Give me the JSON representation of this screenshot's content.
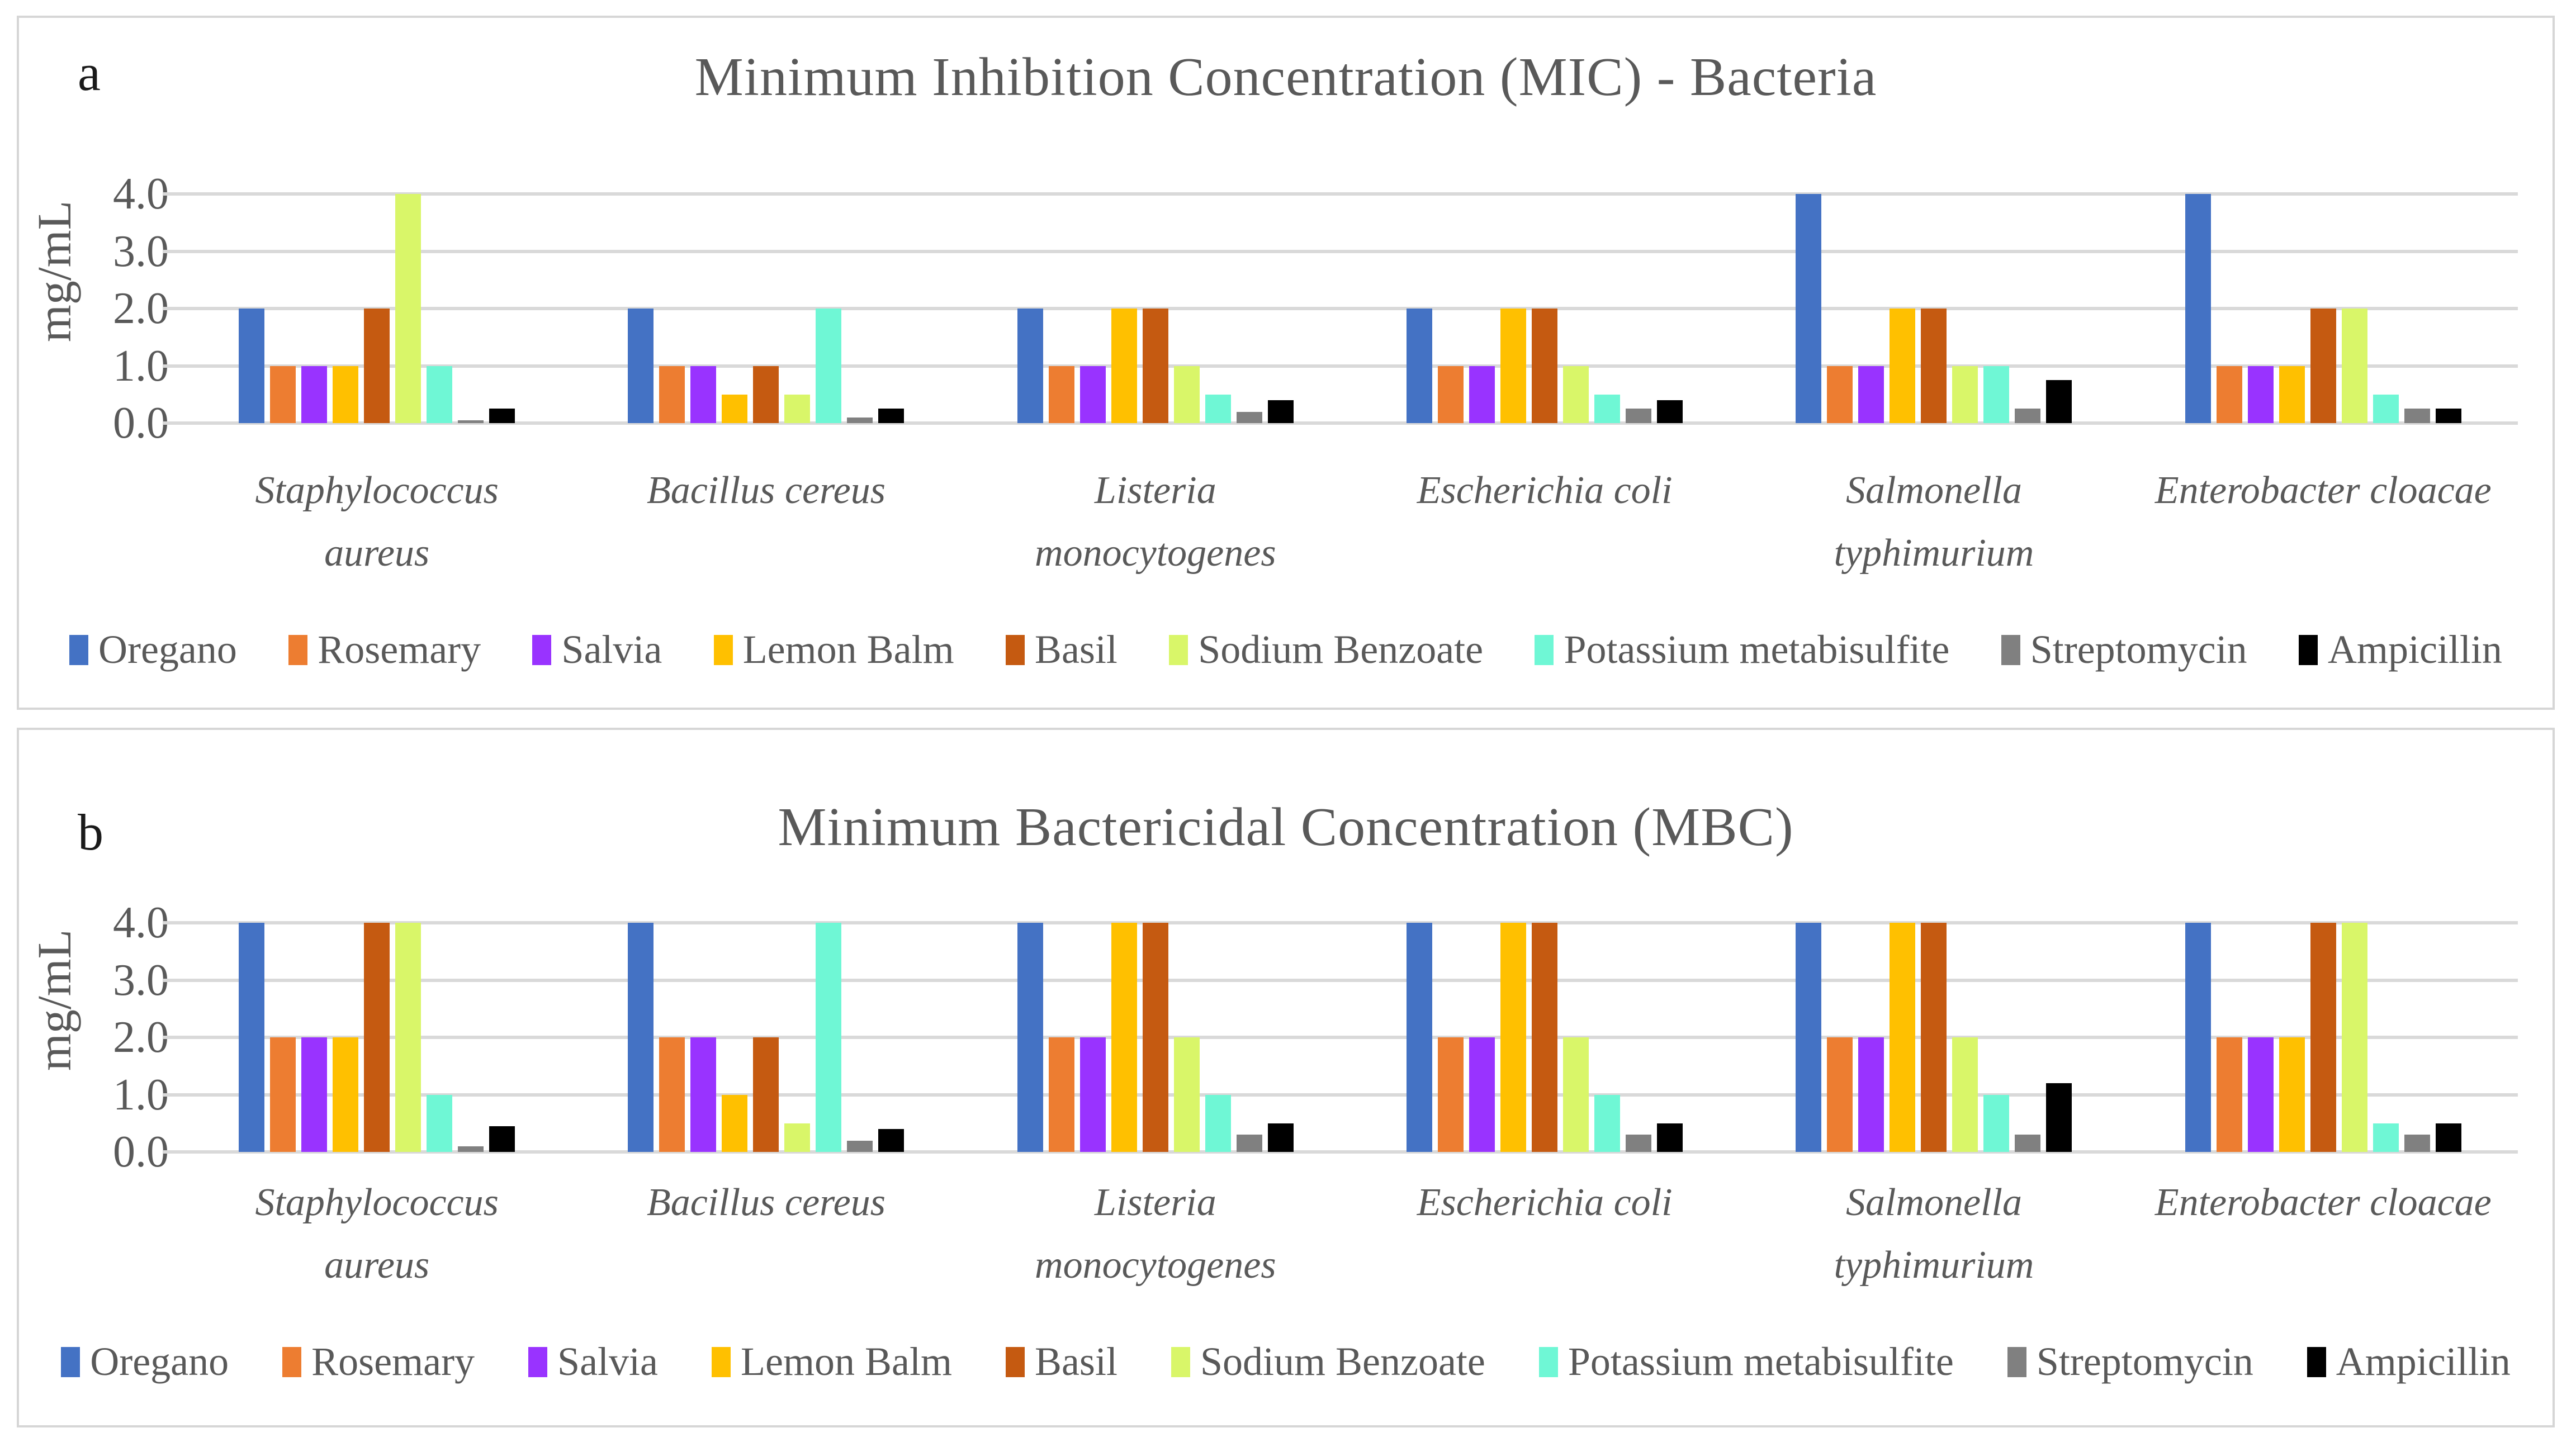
{
  "panels": [
    {
      "letter": "a"
    },
    {
      "letter": "b"
    }
  ],
  "series_colors": {
    "oregano": "#4472C4",
    "rosemary": "#ED7D31",
    "salvia": "#9933FF",
    "lemon_balm": "#FFC000",
    "basil": "#C55A11",
    "sodium_benzoate": "#D9F669",
    "potassium_metabisulfite": "#6FF7D5",
    "streptomycin": "#808080",
    "ampicillin": "#000000"
  },
  "style_colors": {
    "title_text": "#595959",
    "axis_text": "#595959",
    "gridline": "#D9D9D9",
    "panel_border": "#D6D6D6"
  },
  "chart_data": [
    {
      "type": "bar",
      "title": "Minimum Inhibition Concentration (MIC) - Bacteria",
      "ylabel": "mg/mL",
      "ylim": [
        0,
        4
      ],
      "yticks": [
        "0.0",
        "1.0",
        "2.0",
        "3.0",
        "4.0"
      ],
      "grid": true,
      "legend_position": "bottom",
      "categories": [
        "Staphylococcus aureus",
        "Bacillus cereus",
        "Listeria monocytogenes",
        "Escherichia coli",
        "Salmonella typhimurium",
        "Enterobacter cloacae"
      ],
      "category_lines": [
        [
          "Staphylococcus",
          "aureus"
        ],
        [
          "Bacillus cereus"
        ],
        [
          "Listeria",
          "monocytogenes"
        ],
        [
          "Escherichia coli"
        ],
        [
          "Salmonella",
          "typhimurium"
        ],
        [
          "Enterobacter cloacae"
        ]
      ],
      "series": [
        {
          "name": "Oregano",
          "color": "#4472C4",
          "values": [
            2,
            2,
            2,
            2,
            4,
            4
          ]
        },
        {
          "name": "Rosemary",
          "color": "#ED7D31",
          "values": [
            1,
            1,
            1,
            1,
            1,
            1
          ]
        },
        {
          "name": "Salvia",
          "color": "#9933FF",
          "values": [
            1,
            1,
            1,
            1,
            1,
            1
          ]
        },
        {
          "name": "Lemon Balm",
          "color": "#FFC000",
          "values": [
            1,
            0.5,
            2,
            2,
            2,
            1
          ]
        },
        {
          "name": "Basil",
          "color": "#C55A11",
          "values": [
            2,
            1,
            2,
            2,
            2,
            2
          ]
        },
        {
          "name": "Sodium Benzoate",
          "color": "#D9F669",
          "values": [
            4,
            0.5,
            1,
            1,
            1,
            2
          ]
        },
        {
          "name": "Potassium metabisulfite",
          "color": "#6FF7D5",
          "values": [
            1,
            2,
            0.5,
            0.5,
            1,
            0.5
          ]
        },
        {
          "name": "Streptomycin",
          "color": "#808080",
          "values": [
            0.05,
            0.1,
            0.2,
            0.25,
            0.25,
            0.25
          ]
        },
        {
          "name": "Ampicillin",
          "color": "#000000",
          "values": [
            0.25,
            0.25,
            0.4,
            0.4,
            0.75,
            0.25
          ]
        }
      ]
    },
    {
      "type": "bar",
      "title": "Minimum Bactericidal Concentration (MBC)",
      "ylabel": "mg/mL",
      "ylim": [
        0,
        4
      ],
      "yticks": [
        "0.0",
        "1.0",
        "2.0",
        "3.0",
        "4.0"
      ],
      "grid": true,
      "legend_position": "bottom",
      "categories": [
        "Staphylococcus aureus",
        "Bacillus cereus",
        "Listeria monocytogenes",
        "Escherichia coli",
        "Salmonella typhimurium",
        "Enterobacter cloacae"
      ],
      "category_lines": [
        [
          "Staphylococcus",
          "aureus"
        ],
        [
          "Bacillus cereus"
        ],
        [
          "Listeria",
          "monocytogenes"
        ],
        [
          "Escherichia coli"
        ],
        [
          "Salmonella",
          "typhimurium"
        ],
        [
          "Enterobacter cloacae"
        ]
      ],
      "series": [
        {
          "name": "Oregano",
          "color": "#4472C4",
          "values": [
            4,
            4,
            4,
            4,
            4,
            4
          ]
        },
        {
          "name": "Rosemary",
          "color": "#ED7D31",
          "values": [
            2,
            2,
            2,
            2,
            2,
            2
          ]
        },
        {
          "name": "Salvia",
          "color": "#9933FF",
          "values": [
            2,
            2,
            2,
            2,
            2,
            2
          ]
        },
        {
          "name": "Lemon Balm",
          "color": "#FFC000",
          "values": [
            2,
            1,
            4,
            4,
            4,
            2
          ]
        },
        {
          "name": "Basil",
          "color": "#C55A11",
          "values": [
            4,
            2,
            4,
            4,
            4,
            4
          ]
        },
        {
          "name": "Sodium Benzoate",
          "color": "#D9F669",
          "values": [
            4,
            0.5,
            2,
            2,
            2,
            4
          ]
        },
        {
          "name": "Potassium metabisulfite",
          "color": "#6FF7D5",
          "values": [
            1,
            4,
            1,
            1,
            1,
            0.5
          ]
        },
        {
          "name": "Streptomycin",
          "color": "#808080",
          "values": [
            0.1,
            0.2,
            0.3,
            0.3,
            0.3,
            0.3
          ]
        },
        {
          "name": "Ampicillin",
          "color": "#000000",
          "values": [
            0.45,
            0.4,
            0.5,
            0.5,
            1.2,
            0.5
          ]
        }
      ]
    }
  ]
}
